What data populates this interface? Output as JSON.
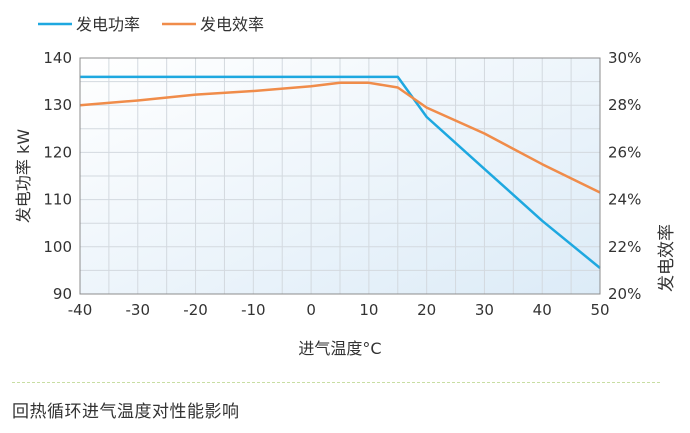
{
  "chart_data": {
    "type": "line",
    "legend": {
      "placement": "top-left"
    },
    "xlabel": "进气温度°C",
    "ylabel_left": "发电功率 kW",
    "ylabel_right": "发电效率",
    "x_ticks": [
      -40,
      -30,
      -20,
      -10,
      0,
      10,
      20,
      30,
      40,
      50
    ],
    "y_left_ticks": [
      90,
      100,
      110,
      120,
      130,
      140
    ],
    "y_right_ticks": [
      "20%",
      "22%",
      "24%",
      "26%",
      "28%",
      "30%"
    ],
    "xlim": [
      -40,
      50
    ],
    "ylim_left": [
      90,
      140
    ],
    "ylim_right": [
      20,
      30
    ],
    "grid": true,
    "series": [
      {
        "name": "发电功率",
        "axis": "left",
        "color": "#1ea8e0",
        "x": [
          -40,
          -30,
          -20,
          -10,
          0,
          10,
          15,
          20,
          30,
          40,
          50
        ],
        "y": [
          136,
          136,
          136,
          136,
          136,
          136,
          136,
          127.5,
          116.5,
          105.5,
          95.5
        ]
      },
      {
        "name": "发电效率",
        "axis": "right",
        "color": "#f08c4a",
        "x": [
          -40,
          -30,
          -20,
          -10,
          0,
          5,
          10,
          15,
          20,
          30,
          40,
          50
        ],
        "y": [
          28.0,
          28.2,
          28.45,
          28.6,
          28.8,
          28.95,
          28.95,
          28.75,
          27.9,
          26.8,
          25.5,
          24.3
        ]
      }
    ]
  },
  "caption": "回热循环进气温度对性能影响"
}
